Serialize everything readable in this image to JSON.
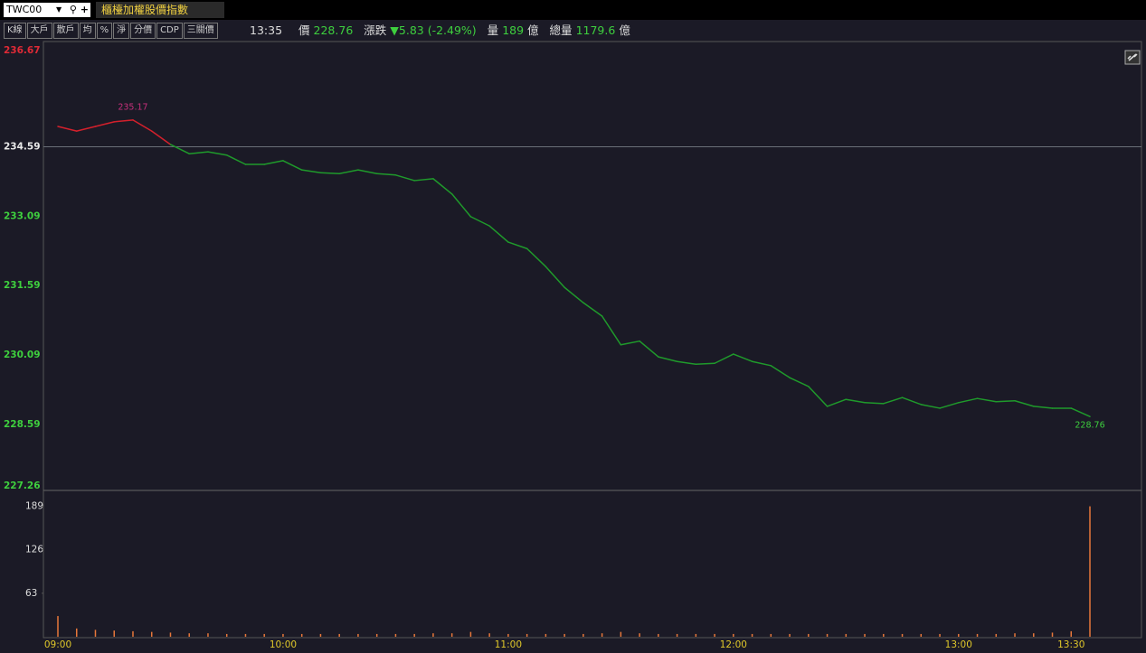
{
  "header": {
    "symbol": "TWC00",
    "title": "櫃檯加權股價指數"
  },
  "toolbar": [
    "K線",
    "大戶",
    "散戶",
    "均",
    "%",
    "淨",
    "分價",
    "CDP",
    "三關價"
  ],
  "quote": {
    "time": "13:35",
    "price_label": "價",
    "price": "228.76",
    "change_label": "漲跌",
    "change": "▼5.83 (-2.49%)",
    "volume_label": "量",
    "volume": "189",
    "volume_unit": "億",
    "total_label": "總量",
    "total": "1179.6",
    "total_unit": "億"
  },
  "chart_data": [
    {
      "type": "line",
      "x": [
        "09:00",
        "09:05",
        "09:10",
        "09:15",
        "09:20",
        "09:25",
        "09:30",
        "09:35",
        "09:40",
        "09:45",
        "09:50",
        "09:55",
        "10:00",
        "10:05",
        "10:10",
        "10:15",
        "10:20",
        "10:25",
        "10:30",
        "10:35",
        "10:40",
        "10:45",
        "10:50",
        "10:55",
        "11:00",
        "11:05",
        "11:10",
        "11:15",
        "11:20",
        "11:25",
        "11:30",
        "11:35",
        "11:40",
        "11:45",
        "11:50",
        "11:55",
        "12:00",
        "12:05",
        "12:10",
        "12:15",
        "12:20",
        "12:25",
        "12:30",
        "12:35",
        "12:40",
        "12:45",
        "12:50",
        "12:55",
        "13:00",
        "13:05",
        "13:10",
        "13:15",
        "13:20",
        "13:25",
        "13:30",
        "13:35"
      ],
      "values": [
        235.03,
        234.93,
        235.03,
        235.13,
        235.17,
        234.93,
        234.64,
        234.44,
        234.48,
        234.41,
        234.21,
        234.21,
        234.29,
        234.09,
        234.03,
        234.01,
        234.09,
        234.01,
        233.98,
        233.86,
        233.9,
        233.57,
        233.08,
        232.88,
        232.53,
        232.39,
        232.0,
        231.55,
        231.22,
        230.93,
        230.31,
        230.39,
        230.05,
        229.95,
        229.89,
        229.91,
        230.11,
        229.95,
        229.86,
        229.6,
        229.41,
        228.98,
        229.13,
        229.06,
        229.04,
        229.17,
        229.02,
        228.94,
        229.06,
        229.15,
        229.08,
        229.1,
        228.98,
        228.94,
        228.94,
        228.76
      ],
      "reference": 234.59,
      "up_color": "#d4202c",
      "down_color": "#1f9a2b",
      "flat_color": "#e8e8e8",
      "xlim": [
        "09:00",
        "13:35"
      ],
      "ylim": [
        227.26,
        236.67
      ],
      "yticks": [
        236.67,
        234.59,
        233.09,
        231.59,
        230.09,
        228.59,
        227.26
      ],
      "annotations": [
        {
          "x": "09:20",
          "y": 235.17,
          "color": "#c8307c"
        },
        {
          "x": "13:35",
          "y": 228.76,
          "color": "#3ecf3e"
        }
      ]
    },
    {
      "type": "bar",
      "x": [
        "09:00",
        "09:05",
        "09:10",
        "09:15",
        "09:20",
        "09:25",
        "09:30",
        "09:35",
        "09:40",
        "09:45",
        "09:50",
        "09:55",
        "10:00",
        "10:05",
        "10:10",
        "10:15",
        "10:20",
        "10:25",
        "10:30",
        "10:35",
        "10:40",
        "10:45",
        "10:50",
        "10:55",
        "11:00",
        "11:05",
        "11:10",
        "11:15",
        "11:20",
        "11:25",
        "11:30",
        "11:35",
        "11:40",
        "11:45",
        "11:50",
        "11:55",
        "12:00",
        "12:05",
        "12:10",
        "12:15",
        "12:20",
        "12:25",
        "12:30",
        "12:35",
        "12:40",
        "12:45",
        "12:50",
        "12:55",
        "13:00",
        "13:05",
        "13:10",
        "13:15",
        "13:20",
        "13:25",
        "13:30",
        "13:35"
      ],
      "values": [
        30,
        12,
        10,
        9,
        8,
        7,
        6,
        5,
        5,
        4,
        4,
        4,
        4,
        4,
        4,
        4,
        4,
        4,
        4,
        4,
        5,
        5,
        7,
        5,
        4,
        4,
        4,
        4,
        4,
        5,
        7,
        5,
        4,
        4,
        4,
        4,
        4,
        4,
        4,
        4,
        4,
        4,
        4,
        4,
        4,
        4,
        4,
        4,
        4,
        4,
        4,
        5,
        5,
        6,
        8,
        189
      ],
      "color": "#e8783a",
      "xlim": [
        "09:00",
        "13:35"
      ],
      "ylim": [
        0,
        212
      ],
      "yticks": [
        63,
        126,
        189
      ],
      "xticks": [
        "09:00",
        "10:00",
        "11:00",
        "12:00",
        "13:00",
        "13:30"
      ],
      "xtick_color": "#e0c82a"
    }
  ]
}
